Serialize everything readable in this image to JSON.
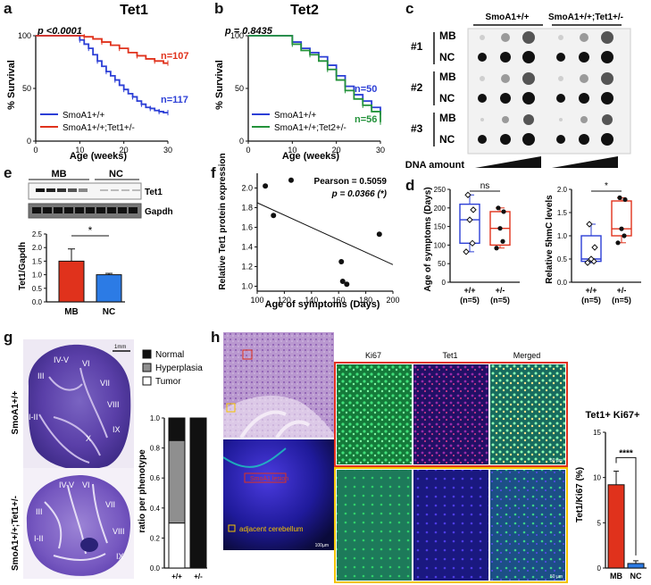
{
  "panels": {
    "a": {
      "letter": "a",
      "title": "Tet1",
      "pvalue": "p <0.0001",
      "ylabel": "% Survival",
      "xlabel": "Age (weeks)",
      "yticks": [
        "0",
        "50",
        "100"
      ],
      "xticks": [
        "0",
        "10",
        "20",
        "30"
      ],
      "legend": [
        {
          "label": "SmoA1+/+",
          "color": "#2c3fd6"
        },
        {
          "label": "SmoA1+/+;Tet1+/-",
          "color": "#e0321c"
        }
      ],
      "n_labels": [
        "n=107",
        "n=117"
      ]
    },
    "b": {
      "letter": "b",
      "title": "Tet2",
      "pvalue": "p = 0.8435",
      "ylabel": "% Survival",
      "xlabel": "Age (weeks)",
      "yticks": [
        "0",
        "50",
        "100"
      ],
      "xticks": [
        "0",
        "10",
        "20",
        "30"
      ],
      "legend": [
        {
          "label": "SmoA1+/+",
          "color": "#2c3fd6"
        },
        {
          "label": "SmoA1+/+;Tet2+/-",
          "color": "#23923a"
        }
      ],
      "n_labels": [
        "n=50",
        "n=56"
      ]
    },
    "c": {
      "letter": "c",
      "group_headers": [
        "SmoA1+/+",
        "SmoA1+/+;Tet1+/-"
      ],
      "replicates": [
        "#1",
        "#2",
        "#3"
      ],
      "row_labels": [
        "MB",
        "NC"
      ],
      "footer": "DNA amount"
    },
    "d": {
      "letter": "d",
      "left_ylabel": "Age of symptoms (Days)",
      "left_yticks": [
        "0",
        "50",
        "100",
        "150",
        "200",
        "250"
      ],
      "left_sig": "ns",
      "right_ylabel": "Relative 5hmC levels",
      "right_yticks": [
        "0.0",
        "0.5",
        "1.0",
        "1.5",
        "2.0"
      ],
      "right_sig": "*",
      "group_labels": [
        "+/+",
        "+/-"
      ],
      "group_n": [
        "(n=5)",
        "(n=5)"
      ]
    },
    "e": {
      "letter": "e",
      "blot_groups": [
        "MB",
        "NC"
      ],
      "blot_bands": [
        "Tet1",
        "Gapdh"
      ],
      "ylabel": "Tet1/Gapdh",
      "yticks": [
        "0.0",
        "0.5",
        "1.0",
        "1.5",
        "2.0",
        "2.5"
      ],
      "categories": [
        "MB",
        "NC"
      ],
      "sig": "*"
    },
    "f": {
      "letter": "f",
      "ylabel": "Relative Tet1 protein expression",
      "xlabel": "Age of symptoms (Days)",
      "xticks": [
        "100",
        "120",
        "140",
        "160",
        "180",
        "200"
      ],
      "yticks": [
        "1.0",
        "1.2",
        "1.4",
        "1.6",
        "1.8",
        "2.0"
      ],
      "pearson": "Pearson = 0.5059",
      "pvalue": "p = 0.0366 (*)"
    },
    "g": {
      "letter": "g",
      "scale": "1mm",
      "genotype_top": "SmoA1+/+",
      "genotype_bottom": "SmoA1+/+;Tet1+/-",
      "lobules_top": [
        "III",
        "IV-V",
        "VI",
        "VII",
        "VIII",
        "IX",
        "X",
        "I-II"
      ],
      "lobules_bottom": [
        "IV-V",
        "VI",
        "VII",
        "III",
        "I-II",
        "VIII",
        "IX"
      ],
      "legend": [
        {
          "label": "Normal",
          "color": "#111111"
        },
        {
          "label": "Hyperplasia",
          "color": "#8f8f8f"
        },
        {
          "label": "Tumor",
          "color": "#ffffff"
        }
      ],
      "ylabel": "ratio per phenotype",
      "yticks": [
        "0.0",
        "0.2",
        "0.4",
        "0.6",
        "0.8",
        "1.0"
      ],
      "categories": [
        "+/+",
        "+/-"
      ]
    },
    "h": {
      "letter": "h",
      "inset_labels": [
        "SmoA1 lesion",
        "adjacent cerebellum"
      ],
      "scale_small": "100µm",
      "channels": [
        "Ki67",
        "Tet1",
        "Merged"
      ],
      "scale_micro": "50 µm",
      "chart_title": "Tet1+ Ki67+",
      "ylabel": "Tet1/Ki67 (%)",
      "yticks": [
        "0",
        "5",
        "10",
        "15"
      ],
      "categories": [
        "MB",
        "NC"
      ],
      "sig": "****"
    }
  },
  "chart_data": [
    {
      "id": "a",
      "type": "line",
      "title": "Tet1",
      "xlabel": "Age (weeks)",
      "ylabel": "% Survival",
      "xlim": [
        0,
        30
      ],
      "ylim": [
        0,
        100
      ],
      "series": [
        {
          "name": "SmoA1+/+",
          "color": "#2c3fd6",
          "x": [
            0,
            9,
            10,
            11,
            12,
            13,
            14,
            15,
            16,
            17,
            18,
            19,
            20,
            21,
            22,
            23,
            24,
            25,
            26,
            27,
            28,
            29,
            30
          ],
          "values": [
            100,
            100,
            96,
            92,
            88,
            82,
            76,
            71,
            66,
            62,
            58,
            53,
            49,
            45,
            42,
            38,
            35,
            32,
            31,
            29,
            28,
            27,
            27
          ]
        },
        {
          "name": "SmoA1+/+;Tet1+/-",
          "color": "#e0321c",
          "x": [
            0,
            9,
            11,
            13,
            15,
            17,
            19,
            21,
            23,
            25,
            27,
            29,
            30
          ],
          "values": [
            100,
            100,
            99,
            97,
            94,
            91,
            88,
            84,
            81,
            78,
            76,
            74,
            74
          ]
        }
      ]
    },
    {
      "id": "b",
      "type": "line",
      "title": "Tet2",
      "xlabel": "Age (weeks)",
      "ylabel": "% Survival",
      "xlim": [
        0,
        30
      ],
      "ylim": [
        0,
        100
      ],
      "series": [
        {
          "name": "SmoA1+/+",
          "color": "#2c3fd6",
          "x": [
            0,
            8,
            10,
            12,
            14,
            16,
            18,
            20,
            22,
            24,
            26,
            28,
            30
          ],
          "values": [
            100,
            100,
            94,
            88,
            84,
            80,
            72,
            62,
            52,
            44,
            38,
            32,
            25
          ]
        },
        {
          "name": "SmoA1+/+;Tet2+/-",
          "color": "#23923a",
          "x": [
            0,
            8,
            10,
            12,
            14,
            16,
            18,
            20,
            22,
            24,
            26,
            28,
            30
          ],
          "values": [
            100,
            100,
            92,
            86,
            82,
            76,
            68,
            58,
            48,
            40,
            34,
            28,
            18
          ]
        }
      ]
    },
    {
      "id": "d-left",
      "type": "box",
      "ylabel": "Age of symptoms (Days)",
      "ylim": [
        0,
        250
      ],
      "categories": [
        "+/+",
        "+/-"
      ],
      "series": [
        {
          "name": "+/+",
          "color": "#2c3fd6",
          "box": [
            82,
            105,
            168,
            210,
            235
          ],
          "points": [
            82,
            105,
            168,
            195,
            235
          ]
        },
        {
          "name": "+/-",
          "color": "#e0321c",
          "box": [
            92,
            100,
            145,
            190,
            200
          ],
          "points": [
            92,
            110,
            145,
            190,
            200
          ]
        }
      ]
    },
    {
      "id": "d-right",
      "type": "box",
      "ylabel": "Relative 5hmC levels",
      "ylim": [
        0,
        2.0
      ],
      "categories": [
        "+/+",
        "+/-"
      ],
      "series": [
        {
          "name": "+/+",
          "color": "#2c3fd6",
          "box": [
            0.42,
            0.45,
            0.5,
            1.0,
            1.25
          ],
          "points": [
            0.42,
            0.45,
            0.5,
            0.75,
            1.25
          ]
        },
        {
          "name": "+/-",
          "color": "#e0321c",
          "box": [
            0.85,
            1.0,
            1.15,
            1.75,
            1.82
          ],
          "points": [
            0.85,
            1.0,
            1.15,
            1.78,
            1.82
          ]
        }
      ]
    },
    {
      "id": "e",
      "type": "bar",
      "ylabel": "Tet1/Gapdh",
      "ylim": [
        0,
        2.5
      ],
      "categories": [
        "MB",
        "NC"
      ],
      "values": [
        1.5,
        1.0
      ],
      "errors": [
        0.45,
        0.05
      ],
      "colors": [
        "#e0321c",
        "#2c7be5"
      ]
    },
    {
      "id": "f",
      "type": "scatter",
      "xlabel": "Age of symptoms (Days)",
      "ylabel": "Relative Tet1 protein expression",
      "xlim": [
        100,
        200
      ],
      "ylim": [
        0.95,
        2.15
      ],
      "x": [
        106,
        112,
        125,
        162,
        163,
        166,
        190
      ],
      "values": [
        2.02,
        1.72,
        2.08,
        1.25,
        1.05,
        1.02,
        1.53
      ],
      "fit": {
        "x": [
          100,
          200
        ],
        "values": [
          1.85,
          1.22
        ]
      }
    },
    {
      "id": "g",
      "type": "bar",
      "stacked": true,
      "ylabel": "ratio per phenotype",
      "ylim": [
        0,
        1.0
      ],
      "categories": [
        "+/+",
        "+/-"
      ],
      "series": [
        {
          "name": "Tumor",
          "color": "#ffffff",
          "values": [
            0.3,
            0.0
          ]
        },
        {
          "name": "Hyperplasia",
          "color": "#8f8f8f",
          "values": [
            0.55,
            0.0
          ]
        },
        {
          "name": "Normal",
          "color": "#111111",
          "values": [
            0.15,
            1.0
          ]
        }
      ]
    },
    {
      "id": "h",
      "type": "bar",
      "title": "Tet1+ Ki67+",
      "ylabel": "Tet1/Ki67 (%)",
      "ylim": [
        0,
        15
      ],
      "categories": [
        "MB",
        "NC"
      ],
      "values": [
        9.2,
        0.5
      ],
      "errors": [
        1.5,
        0.3
      ],
      "colors": [
        "#e0321c",
        "#2c7be5"
      ]
    }
  ]
}
